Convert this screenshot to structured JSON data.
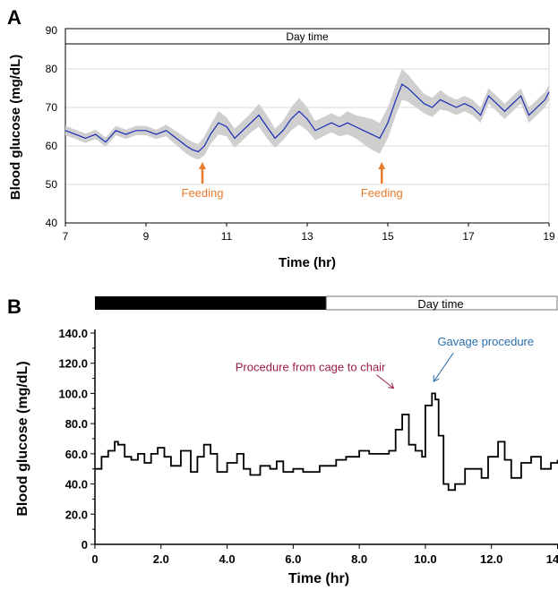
{
  "chart_data": [
    {
      "panel": "A",
      "type": "line",
      "day_bar_label": "Day time",
      "xlabel": "Time (hr)",
      "ylabel": "Blood glucose (mg/dL)",
      "xlim": [
        7,
        19
      ],
      "ylim": [
        40,
        90
      ],
      "xticks": [
        "7",
        "9",
        "11",
        "13",
        "15",
        "17",
        "19"
      ],
      "yticks": [
        "40",
        "50",
        "60",
        "70",
        "80",
        "90"
      ],
      "grid": true,
      "colors": {
        "line": "#1a2db5",
        "band": "#cfcfcf",
        "arrow": "#e87b2c",
        "grid": "#d9d9d9"
      },
      "series": [
        {
          "x": [
            7.0,
            7.25,
            7.5,
            7.75,
            8.0,
            8.25,
            8.5,
            8.75,
            9.0,
            9.25,
            9.5,
            9.75,
            10.0,
            10.15,
            10.3,
            10.45,
            10.6,
            10.8,
            11.0,
            11.2,
            11.4,
            11.6,
            11.8,
            12.0,
            12.2,
            12.4,
            12.6,
            12.8,
            13.0,
            13.2,
            13.4,
            13.6,
            13.8,
            14.0,
            14.2,
            14.4,
            14.6,
            14.8,
            15.0,
            15.2,
            15.35,
            15.5,
            15.7,
            15.9,
            16.1,
            16.3,
            16.5,
            16.7,
            16.9,
            17.1,
            17.3,
            17.5,
            17.7,
            17.9,
            18.1,
            18.3,
            18.5,
            18.7,
            18.9,
            19.0
          ],
          "y": [
            64,
            63,
            62,
            63,
            61,
            64,
            63,
            64,
            64,
            63,
            64,
            62,
            60,
            59,
            58.5,
            60,
            63,
            66,
            65,
            62,
            64,
            66,
            68,
            65,
            62,
            64,
            67,
            69,
            67,
            64,
            65,
            66,
            65,
            66,
            65,
            64,
            63,
            62,
            66,
            72,
            76,
            75,
            73,
            71,
            70,
            72,
            71,
            70,
            71,
            70,
            68,
            73,
            71,
            69,
            71,
            73,
            68,
            70,
            72,
            74
          ],
          "band": [
            1.2,
            1.2,
            1.2,
            1.2,
            1.2,
            1.2,
            1.2,
            1.2,
            1.2,
            1.2,
            1.5,
            1.8,
            2,
            2,
            2,
            2.5,
            2.5,
            3,
            2.5,
            2.5,
            2.5,
            2.5,
            3,
            3,
            2.5,
            2.5,
            3,
            3.5,
            3,
            2.5,
            2.5,
            2.5,
            2.5,
            3,
            3,
            3.5,
            4,
            4,
            4,
            4,
            4,
            3.5,
            3,
            2.5,
            2.5,
            2.5,
            2,
            2,
            2,
            2,
            2,
            2,
            2,
            2,
            2,
            2,
            2,
            2,
            2,
            2
          ]
        }
      ],
      "annotations": [
        {
          "text": "Feeding",
          "x": 10.4
        },
        {
          "text": "Feeding",
          "x": 14.85
        }
      ]
    },
    {
      "panel": "B",
      "type": "line",
      "day_bar_label": "Day time",
      "night_until_x": 7.0,
      "xlabel": "Time (hr)",
      "ylabel": "Blood glucose (mg/dL)",
      "xlim": [
        0,
        14
      ],
      "ylim": [
        0,
        140
      ],
      "xticks": [
        "0",
        "2.0",
        "4.0",
        "6.0",
        "8.0",
        "10.0",
        "12.0",
        "14"
      ],
      "yticks": [
        "0",
        "20.0",
        "40.0",
        "60.0",
        "80.0",
        "100.0",
        "120.0",
        "140.0"
      ],
      "grid": false,
      "colors": {
        "line": "#000000",
        "procedure_text": "#9b1c4a",
        "gavage_text": "#2a6fb0"
      },
      "series": [
        {
          "x": [
            0,
            0.2,
            0.4,
            0.6,
            0.7,
            0.9,
            1.1,
            1.3,
            1.5,
            1.7,
            1.9,
            2.1,
            2.3,
            2.6,
            2.9,
            3.1,
            3.3,
            3.5,
            3.7,
            4.0,
            4.3,
            4.5,
            4.7,
            5.0,
            5.3,
            5.5,
            5.7,
            6.0,
            6.3,
            6.5,
            6.8,
            7.0,
            7.3,
            7.6,
            8.0,
            8.3,
            8.6,
            8.9,
            9.1,
            9.3,
            9.5,
            9.7,
            9.9,
            10.0,
            10.2,
            10.3,
            10.4,
            10.55,
            10.7,
            10.9,
            11.2,
            11.5,
            11.7,
            11.9,
            12.2,
            12.4,
            12.6,
            12.9,
            13.2,
            13.5,
            13.8,
            14.0
          ],
          "y": [
            50,
            58,
            62,
            68,
            66,
            58,
            56,
            60,
            54,
            60,
            64,
            58,
            52,
            62,
            48,
            58,
            66,
            60,
            48,
            54,
            60,
            50,
            46,
            52,
            50,
            55,
            48,
            50,
            48,
            48,
            52,
            52,
            56,
            58,
            62,
            60,
            60,
            62,
            76,
            86,
            66,
            62,
            58,
            92,
            100,
            96,
            72,
            40,
            36,
            40,
            50,
            50,
            44,
            58,
            68,
            56,
            44,
            54,
            58,
            50,
            54,
            56
          ]
        }
      ],
      "annotations": [
        {
          "text": "Procedure from cage to chair",
          "x": 9.2,
          "y": 88
        },
        {
          "text": "Gavage procedure",
          "x": 10.2,
          "y": 102
        }
      ]
    }
  ],
  "panel_labels": [
    "A",
    "B"
  ]
}
